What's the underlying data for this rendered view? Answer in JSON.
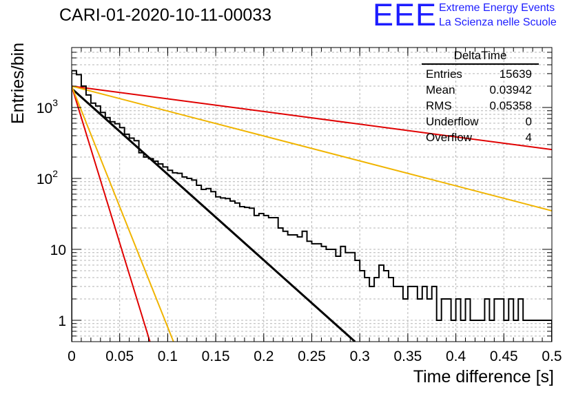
{
  "run_title": "CARI-01-2020-10-11-00033",
  "logo": {
    "mark": "EEE",
    "line1": "Extreme Energy Events",
    "line2": "La Scienza nelle Scuole"
  },
  "stats": {
    "title": "DeltaTime",
    "rows": [
      {
        "label": "Entries",
        "value": "15639"
      },
      {
        "label": "Mean",
        "value": "0.03942"
      },
      {
        "label": "RMS",
        "value": "0.05358"
      },
      {
        "label": "Underflow",
        "value": "0"
      },
      {
        "label": "Overflow",
        "value": "4"
      }
    ]
  },
  "colors": {
    "histogram": "#000000",
    "fit_black": "#000000",
    "red": "#e00000",
    "orange": "#f0b400",
    "grid": "#b4b4b4",
    "logo_blue": "#1d1dff"
  },
  "chart_data": {
    "type": "line",
    "xlabel": "Time difference [s]",
    "ylabel": "Entries/bin",
    "xlim": [
      0,
      0.5
    ],
    "ylim": [
      0.5,
      7000
    ],
    "y_scale": "log",
    "grid": true,
    "x_ticks": [
      "0",
      "0.05",
      "0.1",
      "0.15",
      "0.2",
      "0.25",
      "0.3",
      "0.35",
      "0.4",
      "0.45",
      "0.5"
    ],
    "y_ticks": [
      {
        "value": 1,
        "label": "1",
        "exp": ""
      },
      {
        "value": 10,
        "label": "10",
        "exp": ""
      },
      {
        "value": 100,
        "label": "10",
        "exp": "2"
      },
      {
        "value": 1000,
        "label": "10",
        "exp": "3"
      }
    ],
    "histogram": {
      "bin_width": 0.005,
      "counts": [
        3300,
        2900,
        2000,
        1500,
        1150,
        1050,
        850,
        720,
        630,
        590,
        520,
        420,
        370,
        340,
        230,
        200,
        190,
        175,
        160,
        145,
        130,
        120,
        118,
        105,
        100,
        95,
        80,
        70,
        72,
        65,
        55,
        53,
        52,
        48,
        45,
        40,
        39,
        38,
        30,
        32,
        30,
        28,
        28,
        20,
        18,
        16,
        16,
        15,
        18,
        13,
        12,
        12,
        11,
        10,
        10,
        8,
        11,
        9,
        9,
        7,
        5,
        4,
        3,
        4,
        6,
        5,
        4,
        3,
        3,
        2,
        3,
        3,
        2,
        3,
        2,
        3,
        1,
        2,
        2,
        1,
        2,
        1,
        2,
        1,
        1,
        1,
        2,
        1,
        2,
        2,
        1,
        2,
        1,
        2,
        1,
        1,
        1,
        1,
        1,
        1
      ]
    },
    "series": [
      {
        "color": "#000000",
        "x": [
          0.0,
          0.295
        ],
        "y": [
          1850,
          0.5
        ]
      },
      {
        "color": "#e00000",
        "x": [
          0.0,
          0.5
        ],
        "y": [
          2000,
          255
        ]
      },
      {
        "color": "#f0b400",
        "x": [
          0.0,
          0.5
        ],
        "y": [
          2000,
          35
        ]
      },
      {
        "color": "#e00000",
        "x": [
          0.0,
          0.0815
        ],
        "y": [
          2000,
          0.5
        ]
      },
      {
        "color": "#f0b400",
        "x": [
          0.0,
          0.106
        ],
        "y": [
          2000,
          0.5
        ]
      }
    ]
  }
}
